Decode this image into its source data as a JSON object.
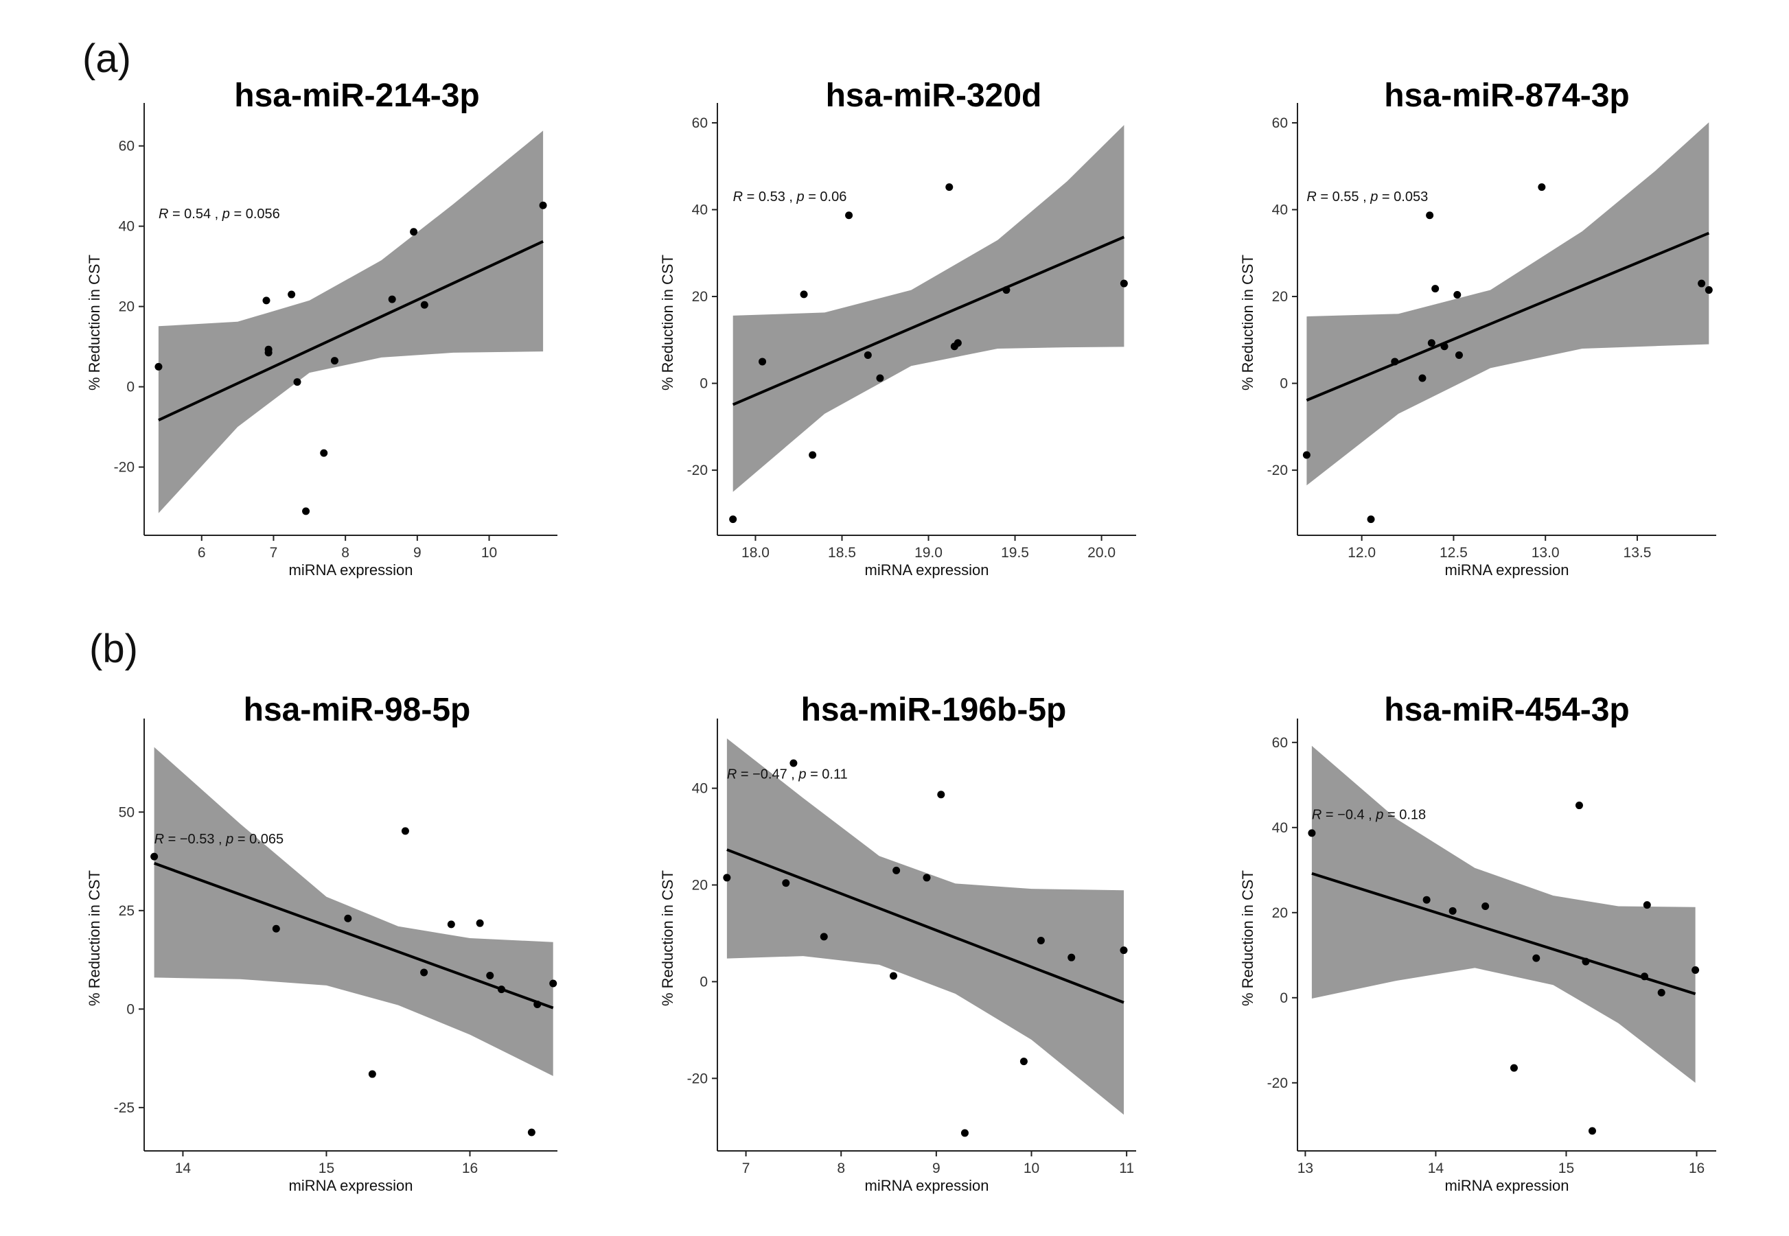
{
  "panels": [
    {
      "label": "(a)"
    },
    {
      "label": "(b)"
    }
  ],
  "chart_data": [
    {
      "type": "scatter",
      "title": "hsa-miR-214-3p",
      "xlabel": "miRNA expression",
      "ylabel": "% Reduction in CST",
      "xticks": [
        6,
        7,
        8,
        9,
        10
      ],
      "yticks": [
        -20,
        0,
        20,
        40,
        60
      ],
      "xlim": [
        5.2,
        10.95
      ],
      "ylim": [
        -37,
        69
      ],
      "annotation": {
        "r_label": "R",
        "r_value": "= 0.54 ,",
        "p_label": "p",
        "p_value": "= 0.056",
        "x": 5.4,
        "y": 42
      },
      "points": [
        [
          5.4,
          5
        ],
        [
          6.9,
          21.5
        ],
        [
          6.93,
          9.3
        ],
        [
          6.93,
          8.5
        ],
        [
          7.25,
          23
        ],
        [
          7.33,
          1.2
        ],
        [
          7.45,
          -31
        ],
        [
          7.7,
          -16.5
        ],
        [
          7.85,
          6.5
        ],
        [
          8.65,
          21.8
        ],
        [
          8.95,
          38.6
        ],
        [
          9.1,
          20.4
        ],
        [
          10.75,
          45.2
        ]
      ],
      "fit": {
        "x": [
          5.4,
          10.75
        ],
        "y": [
          -8.3,
          36.2
        ]
      },
      "ci": {
        "x": [
          5.4,
          6.5,
          7.5,
          8.5,
          9.5,
          10.75
        ],
        "lower": [
          -31.5,
          -10,
          3.5,
          7.3,
          8.5,
          8.8
        ],
        "upper": [
          15.1,
          16.2,
          21.5,
          31.5,
          45.5,
          63.8
        ]
      }
    },
    {
      "type": "scatter",
      "title": "hsa-miR-320d",
      "xlabel": "miRNA expression",
      "ylabel": "% Reduction in CST",
      "xticks": [
        18.0,
        18.5,
        19.0,
        19.5,
        20.0
      ],
      "ytick_labels": [
        "-20",
        "0",
        "20",
        "40",
        "60"
      ],
      "yticks": [
        -20,
        0,
        20,
        40,
        60
      ],
      "xlim": [
        17.78,
        20.2
      ],
      "ylim": [
        -35,
        63
      ],
      "annotation": {
        "r_label": "R",
        "r_value": "= 0.53 ,",
        "p_label": "p",
        "p_value": "= 0.06",
        "x": 17.87,
        "y": 42
      },
      "points": [
        [
          17.87,
          -31.3
        ],
        [
          18.04,
          5
        ],
        [
          18.28,
          20.5
        ],
        [
          18.33,
          -16.5
        ],
        [
          18.54,
          38.7
        ],
        [
          18.65,
          6.5
        ],
        [
          18.72,
          1.2
        ],
        [
          19.12,
          45.2
        ],
        [
          19.15,
          8.5
        ],
        [
          19.17,
          9.3
        ],
        [
          19.45,
          21.5
        ],
        [
          20.13,
          23
        ]
      ],
      "fit": {
        "x": [
          17.87,
          20.13
        ],
        "y": [
          -4.9,
          33.7
        ]
      },
      "ci": {
        "x": [
          17.87,
          18.4,
          18.9,
          19.4,
          19.8,
          20.13
        ],
        "lower": [
          -25,
          -7,
          4,
          8,
          8.3,
          8.4
        ],
        "upper": [
          15.6,
          16.3,
          21.5,
          33,
          46.5,
          59.5
        ]
      }
    },
    {
      "type": "scatter",
      "title": "hsa-miR-874-3p",
      "xlabel": "miRNA expression",
      "ylabel": "% Reduction in CST",
      "xticks": [
        12.0,
        12.5,
        13.0,
        13.5
      ],
      "ytick_labels": [
        "-20",
        "0",
        "20",
        "40",
        "60"
      ],
      "yticks": [
        -20,
        0,
        20,
        40,
        60
      ],
      "xlim": [
        11.65,
        13.93
      ],
      "ylim": [
        -35,
        63
      ],
      "annotation": {
        "r_label": "R",
        "r_value": "= 0.55 ,",
        "p_label": "p",
        "p_value": "= 0.053",
        "x": 11.7,
        "y": 42
      },
      "points": [
        [
          11.7,
          -16.5
        ],
        [
          12.05,
          -31.3
        ],
        [
          12.18,
          5
        ],
        [
          12.33,
          1.2
        ],
        [
          12.37,
          38.7
        ],
        [
          12.38,
          9.3
        ],
        [
          12.4,
          21.8
        ],
        [
          12.45,
          8.5
        ],
        [
          12.52,
          20.4
        ],
        [
          12.53,
          6.5
        ],
        [
          12.98,
          45.2
        ],
        [
          13.85,
          23
        ],
        [
          13.89,
          21.5
        ]
      ],
      "fit": {
        "x": [
          11.7,
          13.89
        ],
        "y": [
          -3.9,
          34.6
        ]
      },
      "ci": {
        "x": [
          11.7,
          12.2,
          12.7,
          13.2,
          13.6,
          13.89
        ],
        "lower": [
          -23.5,
          -7,
          3.5,
          8,
          8.6,
          9
        ],
        "upper": [
          15.4,
          16,
          21.5,
          35,
          49,
          60.1
        ]
      }
    },
    {
      "type": "scatter",
      "title": "hsa-miR-98-5p",
      "xlabel": "miRNA expression",
      "ylabel": "% Reduction in CST",
      "xticks": [
        14,
        15,
        16
      ],
      "ytick_labels": [
        "-25",
        "0",
        "25",
        "50"
      ],
      "yticks": [
        -25,
        0,
        25,
        50
      ],
      "xlim": [
        13.73,
        16.61
      ],
      "ylim": [
        -36,
        72
      ],
      "annotation": {
        "r_label": "R",
        "r_value": "= −0.53 ,",
        "p_label": "p",
        "p_value": "= 0.065",
        "x": 13.8,
        "y": 42
      },
      "points": [
        [
          13.8,
          38.7
        ],
        [
          14.65,
          20.4
        ],
        [
          15.15,
          23
        ],
        [
          15.32,
          -16.5
        ],
        [
          15.55,
          45.2
        ],
        [
          15.68,
          9.3
        ],
        [
          15.87,
          21.5
        ],
        [
          16.07,
          21.8
        ],
        [
          16.14,
          8.5
        ],
        [
          16.22,
          5
        ],
        [
          16.43,
          -31.3
        ],
        [
          16.47,
          1.2
        ],
        [
          16.58,
          6.5
        ]
      ],
      "fit": {
        "x": [
          13.8,
          16.58
        ],
        "y": [
          37.0,
          0.3
        ]
      },
      "ci": {
        "x": [
          13.8,
          14.4,
          15.0,
          15.5,
          16.0,
          16.58
        ],
        "lower": [
          8,
          7.6,
          6,
          1,
          -6.5,
          -17
        ],
        "upper": [
          66.5,
          47,
          28.5,
          21,
          18,
          17
        ]
      }
    },
    {
      "type": "scatter",
      "title": "hsa-miR-196b-5p",
      "xlabel": "miRNA expression",
      "ylabel": "% Reduction in CST",
      "xticks": [
        7,
        8,
        9,
        10,
        11
      ],
      "ytick_labels": [
        "-20",
        "0",
        "20",
        "40"
      ],
      "yticks": [
        -20,
        0,
        20,
        40
      ],
      "xlim": [
        6.7,
        11.1
      ],
      "ylim": [
        -35,
        53
      ],
      "annotation": {
        "r_label": "R",
        "r_value": "= −0.47 ,",
        "p_label": "p",
        "p_value": "= 0.11",
        "x": 6.8,
        "y": 42
      },
      "points": [
        [
          6.8,
          21.5
        ],
        [
          7.42,
          20.4
        ],
        [
          7.5,
          45.2
        ],
        [
          7.82,
          9.3
        ],
        [
          8.55,
          1.2
        ],
        [
          8.58,
          23
        ],
        [
          8.9,
          21.5
        ],
        [
          9.05,
          38.7
        ],
        [
          9.3,
          -31.3
        ],
        [
          9.92,
          -16.5
        ],
        [
          10.1,
          8.5
        ],
        [
          10.42,
          5
        ],
        [
          10.97,
          6.5
        ]
      ],
      "fit": {
        "x": [
          6.8,
          10.97
        ],
        "y": [
          27.3,
          -4.3
        ]
      },
      "ci": {
        "x": [
          6.8,
          7.6,
          8.4,
          9.2,
          10.0,
          10.97
        ],
        "lower": [
          4.8,
          5.3,
          3.5,
          -2.5,
          -12,
          -27.5
        ],
        "upper": [
          50.3,
          38,
          26,
          20.3,
          19.2,
          18.9
        ]
      }
    },
    {
      "type": "scatter",
      "title": "hsa-miR-454-3p",
      "xlabel": "miRNA expression",
      "ylabel": "% Reduction in CST",
      "xticks": [
        13,
        14,
        15,
        16
      ],
      "ytick_labels": [
        "-20",
        "0",
        "20",
        "40",
        "60"
      ],
      "yticks": [
        -20,
        0,
        20,
        40,
        60
      ],
      "xlim": [
        12.94,
        16.15
      ],
      "ylim": [
        -36,
        64
      ],
      "annotation": {
        "r_label": "R",
        "r_value": "= −0.4 ,",
        "p_label": "p",
        "p_value": "= 0.18",
        "x": 13.05,
        "y": 42
      },
      "points": [
        [
          13.05,
          38.7
        ],
        [
          13.93,
          23
        ],
        [
          14.13,
          20.4
        ],
        [
          14.38,
          21.5
        ],
        [
          14.6,
          -16.5
        ],
        [
          14.77,
          9.3
        ],
        [
          15.1,
          45.2
        ],
        [
          15.15,
          8.5
        ],
        [
          15.2,
          -31.3
        ],
        [
          15.6,
          5
        ],
        [
          15.62,
          21.8
        ],
        [
          15.73,
          1.2
        ],
        [
          15.99,
          6.5
        ]
      ],
      "fit": {
        "x": [
          13.05,
          15.99
        ],
        "y": [
          29.2,
          0.9
        ]
      },
      "ci": {
        "x": [
          13.05,
          13.7,
          14.3,
          14.9,
          15.4,
          15.99
        ],
        "lower": [
          -0.2,
          4,
          7,
          3,
          -6,
          -20
        ],
        "upper": [
          59.2,
          42,
          30.5,
          24,
          21.5,
          21.3
        ]
      }
    }
  ]
}
